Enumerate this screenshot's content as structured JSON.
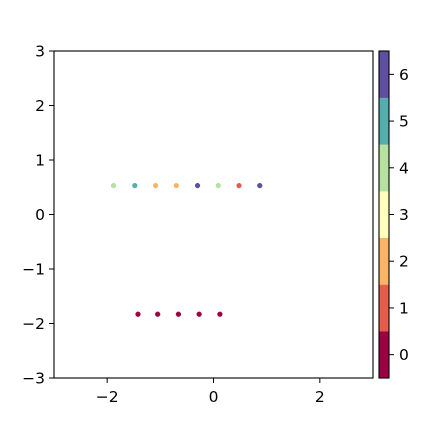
{
  "chart_data": {
    "type": "scatter",
    "title": "",
    "xlabel": "",
    "ylabel": "",
    "xlim": [
      -3,
      3
    ],
    "ylim": [
      -3,
      3
    ],
    "xticks": [
      -2,
      0,
      2
    ],
    "yticks": [
      -3,
      -2,
      -1,
      0,
      1,
      2,
      3
    ],
    "xtick_labels": [
      "−2",
      "0",
      "2"
    ],
    "ytick_labels": [
      "−3",
      "−2",
      "−1",
      "0",
      "1",
      "2",
      "3"
    ],
    "grid": false,
    "points": [
      {
        "x": -1.88,
        "y": 0.53,
        "c": 4
      },
      {
        "x": -1.48,
        "y": 0.53,
        "c": 5
      },
      {
        "x": -1.09,
        "y": 0.53,
        "c": 2
      },
      {
        "x": -0.7,
        "y": 0.53,
        "c": 2
      },
      {
        "x": -0.3,
        "y": 0.53,
        "c": 6
      },
      {
        "x": 0.09,
        "y": 0.53,
        "c": 4
      },
      {
        "x": 0.48,
        "y": 0.53,
        "c": 1
      },
      {
        "x": 0.87,
        "y": 0.53,
        "c": 6
      },
      {
        "x": -1.42,
        "y": -1.83,
        "c": 0
      },
      {
        "x": -1.05,
        "y": -1.83,
        "c": 0
      },
      {
        "x": -0.66,
        "y": -1.83,
        "c": 0
      },
      {
        "x": -0.27,
        "y": -1.83,
        "c": 0
      },
      {
        "x": 0.12,
        "y": -1.83,
        "c": 0
      }
    ],
    "colorbar": {
      "ticks": [
        0,
        1,
        2,
        3,
        4,
        5,
        6
      ],
      "tick_labels": [
        "0",
        "1",
        "2",
        "3",
        "4",
        "5",
        "6"
      ],
      "range": [
        -0.5,
        6.5
      ],
      "colors": [
        "#9e0142",
        "#e55d4a",
        "#fbb366",
        "#fefebd",
        "#b6e1a0",
        "#54aead",
        "#5e4fa2"
      ]
    }
  }
}
